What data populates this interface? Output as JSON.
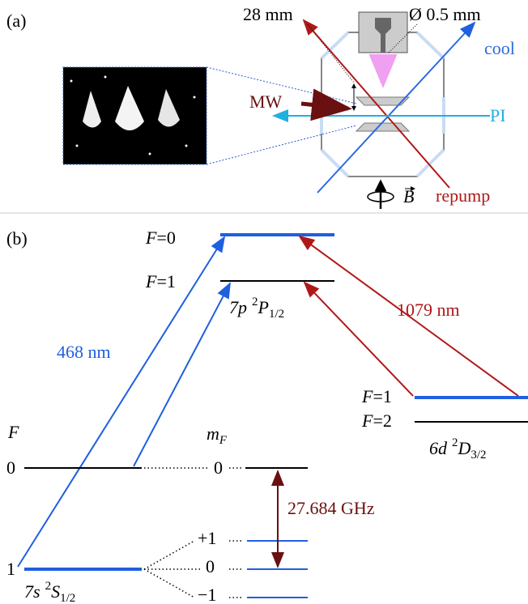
{
  "panel_a": {
    "label": "(a)",
    "distance": "28 mm",
    "nozzle": "Ø 0.5 mm",
    "cool": "cool",
    "mw": "MW",
    "pi": "PI",
    "repump": "repump",
    "field": "B"
  },
  "panel_b": {
    "label": "(b)",
    "upper": {
      "f0": {
        "symbol": "F",
        "value": "=0"
      },
      "f1": {
        "symbol": "F",
        "value": "=1"
      },
      "term": {
        "config": "7p",
        "multiplicity": "2",
        "letter": "P",
        "j": "1/2"
      }
    },
    "blue_wavelength": "468 nm",
    "red_wavelength": "1079 nm",
    "metastable": {
      "f1": {
        "symbol": "F",
        "value": "=1"
      },
      "f2": {
        "symbol": "F",
        "value": "=2"
      },
      "term": {
        "config": "6d",
        "multiplicity": "2",
        "letter": "D",
        "j": "3/2"
      }
    },
    "ground": {
      "f_header": "F",
      "mf_header": {
        "symbol": "m",
        "sub": "F"
      },
      "f0": "0",
      "f1": "1",
      "mf_upper": "0",
      "mf_plus": "+1",
      "mf_zero": "0",
      "mf_minus": "−1",
      "splitting": "27.684 GHz",
      "term": {
        "config": "7s",
        "multiplicity": "2",
        "letter": "S",
        "j": "1/2"
      }
    }
  }
}
